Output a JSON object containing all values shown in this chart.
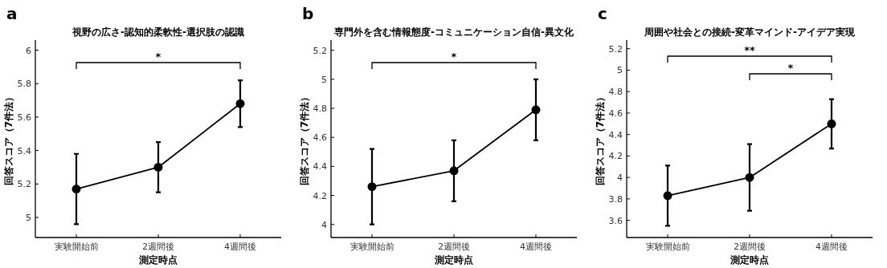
{
  "chart_data": [
    {
      "type": "line",
      "title": "視野の広さ-認知的柔軟性-選択肢の認識",
      "xlabel": "測定時点",
      "ylabel": "回答スコア（7件法）",
      "categories": [
        "実験開始前",
        "2週間後",
        "4週間後"
      ],
      "values": [
        5.17,
        5.3,
        5.68
      ],
      "errors": [
        0.21,
        0.15,
        0.14
      ],
      "color": "#000000",
      "marker": "circle",
      "ylim": [
        4.88,
        6.06
      ],
      "yticks": [
        5,
        5.2,
        5.4,
        5.6,
        5.8,
        6
      ],
      "annotations": [
        "a",
        "*"
      ]
    },
    {
      "type": "line",
      "title": "専門外を含む情報態度-コミュニケーション自信-異文化",
      "xlabel": "測定時点",
      "ylabel": "回答スコア（7件法）",
      "categories": [
        "実験開始前",
        "2週間後",
        "4週間後"
      ],
      "values": [
        4.26,
        4.37,
        4.79
      ],
      "errors": [
        0.26,
        0.21,
        0.21
      ],
      "color": "#000000",
      "marker": "circle",
      "ylim": [
        3.91,
        5.27
      ],
      "yticks": [
        4,
        4.2,
        4.4,
        4.6,
        4.8,
        5,
        5.2
      ],
      "annotations": [
        "b",
        "*"
      ]
    },
    {
      "type": "line",
      "title": "周囲や社会との接続-変革マインド-アイデア実現",
      "xlabel": "測定時点",
      "ylabel": "回答スコア（7件法）",
      "categories": [
        "実験開始前",
        "2週間後",
        "4週間後"
      ],
      "values": [
        3.83,
        4.0,
        4.5
      ],
      "errors": [
        0.28,
        0.31,
        0.23
      ],
      "color": "#000000",
      "marker": "circle",
      "ylim": [
        3.44,
        5.28
      ],
      "yticks": [
        3.6,
        3.8,
        4,
        4.2,
        4.4,
        4.6,
        4.8,
        5,
        5.2
      ],
      "annotations": [
        "c",
        "**",
        "*"
      ]
    }
  ]
}
